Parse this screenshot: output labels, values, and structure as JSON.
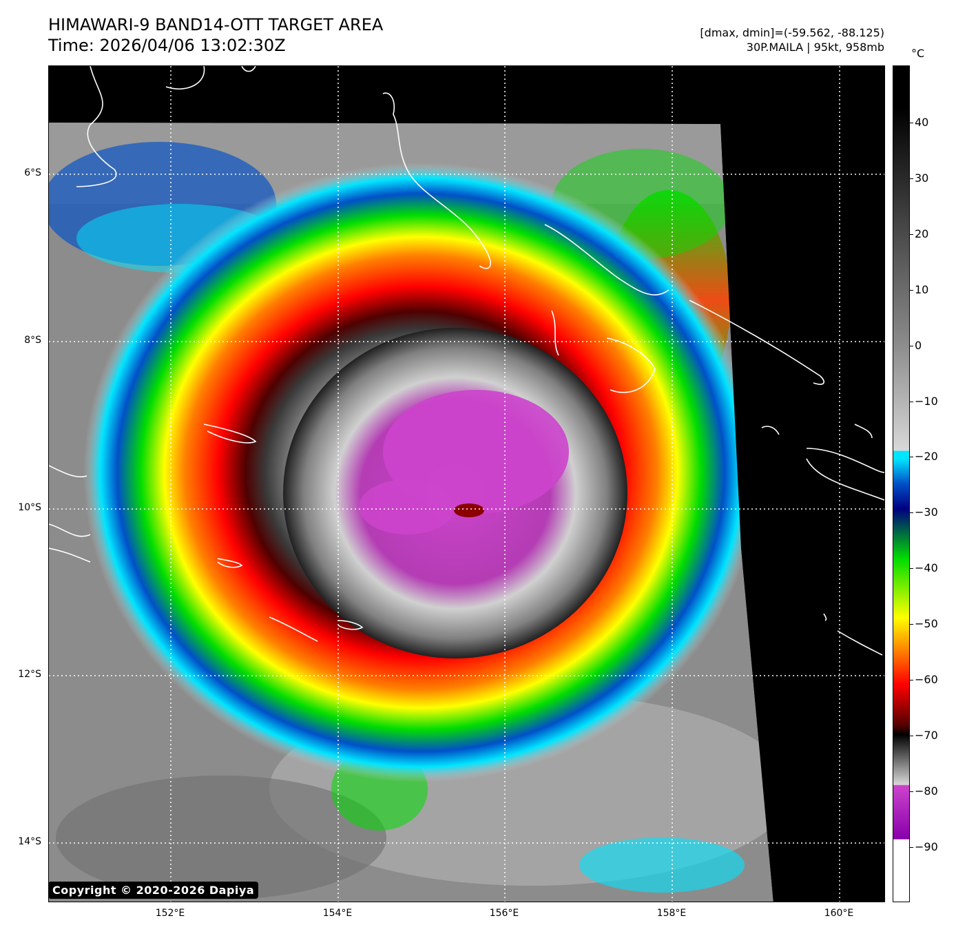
{
  "header": {
    "title_line1": "HIMAWARI-9 BAND14-OTT TARGET AREA",
    "title_line2": "Time: 2026/04/06 13:02:30Z",
    "meta_line1": "[dmax, dmin]=(-59.562, -88.125)",
    "meta_line2": "30P.MAILA | 95kt, 958mb"
  },
  "axes": {
    "y_labels": [
      "6°S",
      "8°S",
      "10°S",
      "12°S",
      "14°S"
    ],
    "x_labels": [
      "152°E",
      "154°E",
      "156°E",
      "158°E",
      "160°E"
    ]
  },
  "colorbar": {
    "unit": "°C",
    "labels": [
      "40",
      "30",
      "20",
      "10",
      "0",
      "−10",
      "−20",
      "−30",
      "−40",
      "−50",
      "−60",
      "−70",
      "−80",
      "−90"
    ],
    "colors": {
      "warm_top": "#000000",
      "gray_mid": "#8a8a8a",
      "light_gray": "#d8d8d8",
      "cyan": "#00e5ff",
      "blue": "#0050c8",
      "navy": "#000080",
      "green": "#00dd00",
      "yellow": "#ffff00",
      "orange": "#ff8000",
      "red": "#ff0000",
      "darkred": "#500000",
      "magenta": "#cc44cc",
      "purple": "#8800aa",
      "white": "#ffffff"
    }
  },
  "copyright": "Copyright © 2020-2026 Dapiya"
}
